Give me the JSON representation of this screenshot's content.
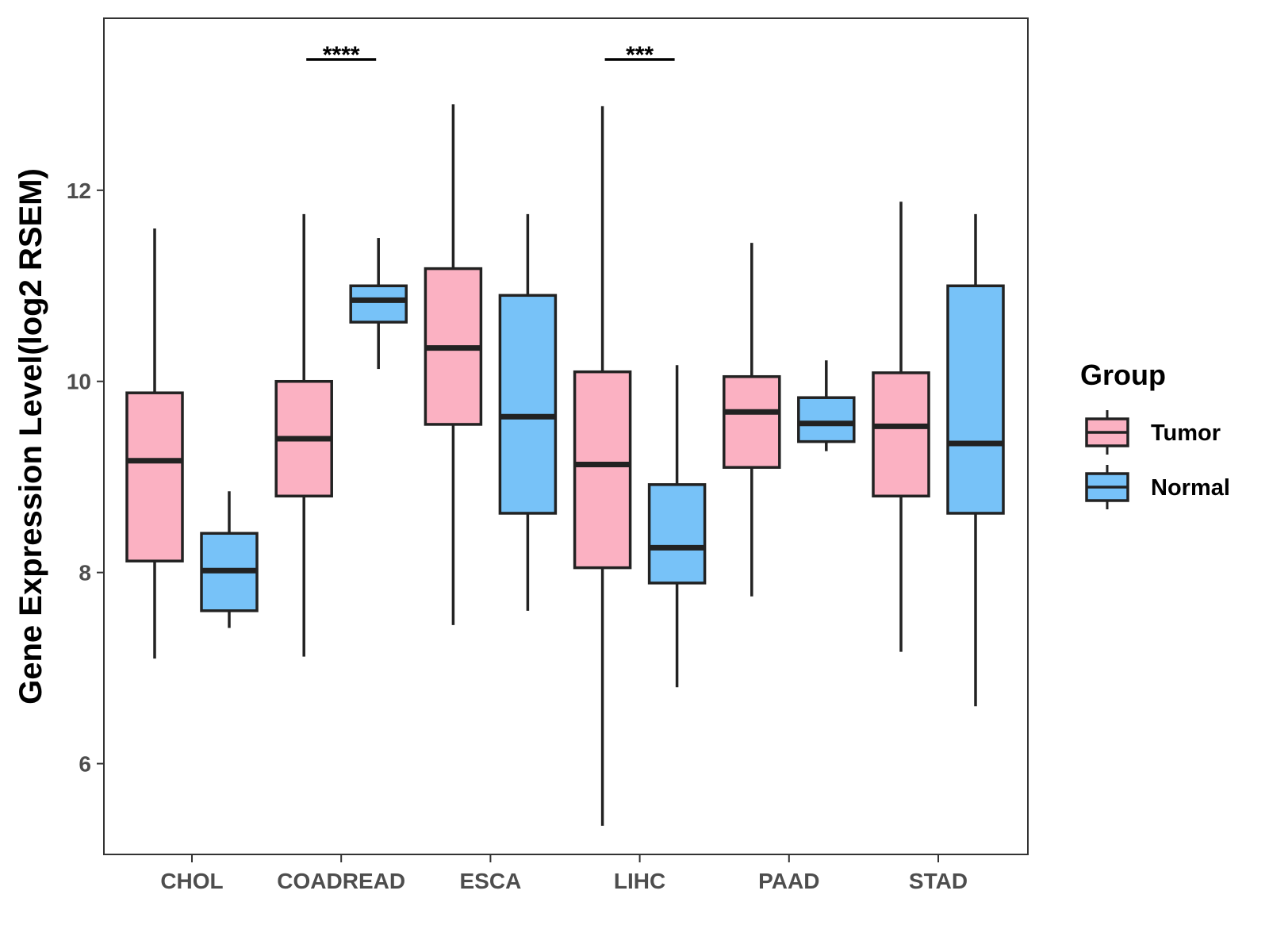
{
  "chart_data": {
    "type": "boxplot",
    "title": "",
    "xlabel": "",
    "ylabel": "Gene Expression Level(log2 RSEM)",
    "ylim": [
      5.05,
      13.8
    ],
    "yticks": [
      6,
      8,
      10,
      12
    ],
    "categories": [
      "CHOL",
      "COADREAD",
      "ESCA",
      "LIHC",
      "PAAD",
      "STAD"
    ],
    "legend": {
      "title": "Group",
      "position": "right",
      "items": [
        {
          "name": "Tumor",
          "color": "#FBB1C2"
        },
        {
          "name": "Normal",
          "color": "#77C2F8"
        }
      ]
    },
    "series": [
      {
        "name": "Tumor",
        "color": "#FBB1C2",
        "boxes": [
          {
            "category": "CHOL",
            "whisker_low": 7.1,
            "q1": 8.12,
            "median": 9.17,
            "q3": 9.88,
            "whisker_high": 11.6
          },
          {
            "category": "COADREAD",
            "whisker_low": 7.12,
            "q1": 8.8,
            "median": 9.4,
            "q3": 10.0,
            "whisker_high": 11.75
          },
          {
            "category": "ESCA",
            "whisker_low": 7.45,
            "q1": 9.55,
            "median": 10.35,
            "q3": 11.18,
            "whisker_high": 12.9
          },
          {
            "category": "LIHC",
            "whisker_low": 5.35,
            "q1": 8.05,
            "median": 9.13,
            "q3": 10.1,
            "whisker_high": 12.88
          },
          {
            "category": "PAAD",
            "whisker_low": 7.75,
            "q1": 9.1,
            "median": 9.68,
            "q3": 10.05,
            "whisker_high": 11.45
          },
          {
            "category": "STAD",
            "whisker_low": 7.17,
            "q1": 8.8,
            "median": 9.53,
            "q3": 10.09,
            "whisker_high": 11.88
          }
        ]
      },
      {
        "name": "Normal",
        "color": "#77C2F8",
        "boxes": [
          {
            "category": "CHOL",
            "whisker_low": 7.42,
            "q1": 7.6,
            "median": 8.02,
            "q3": 8.41,
            "whisker_high": 8.85
          },
          {
            "category": "COADREAD",
            "whisker_low": 10.13,
            "q1": 10.62,
            "median": 10.85,
            "q3": 11.0,
            "whisker_high": 11.5
          },
          {
            "category": "ESCA",
            "whisker_low": 7.6,
            "q1": 8.62,
            "median": 9.63,
            "q3": 10.9,
            "whisker_high": 11.75
          },
          {
            "category": "LIHC",
            "whisker_low": 6.8,
            "q1": 7.89,
            "median": 8.26,
            "q3": 8.92,
            "whisker_high": 10.17
          },
          {
            "category": "PAAD",
            "whisker_low": 9.27,
            "q1": 9.37,
            "median": 9.56,
            "q3": 9.83,
            "whisker_high": 10.22
          },
          {
            "category": "STAD",
            "whisker_low": 6.6,
            "q1": 8.62,
            "median": 9.35,
            "q3": 11.0,
            "whisker_high": 11.75
          }
        ]
      }
    ],
    "annotations": [
      {
        "category": "COADREAD",
        "text": "****"
      },
      {
        "category": "LIHC",
        "text": "***"
      }
    ]
  }
}
